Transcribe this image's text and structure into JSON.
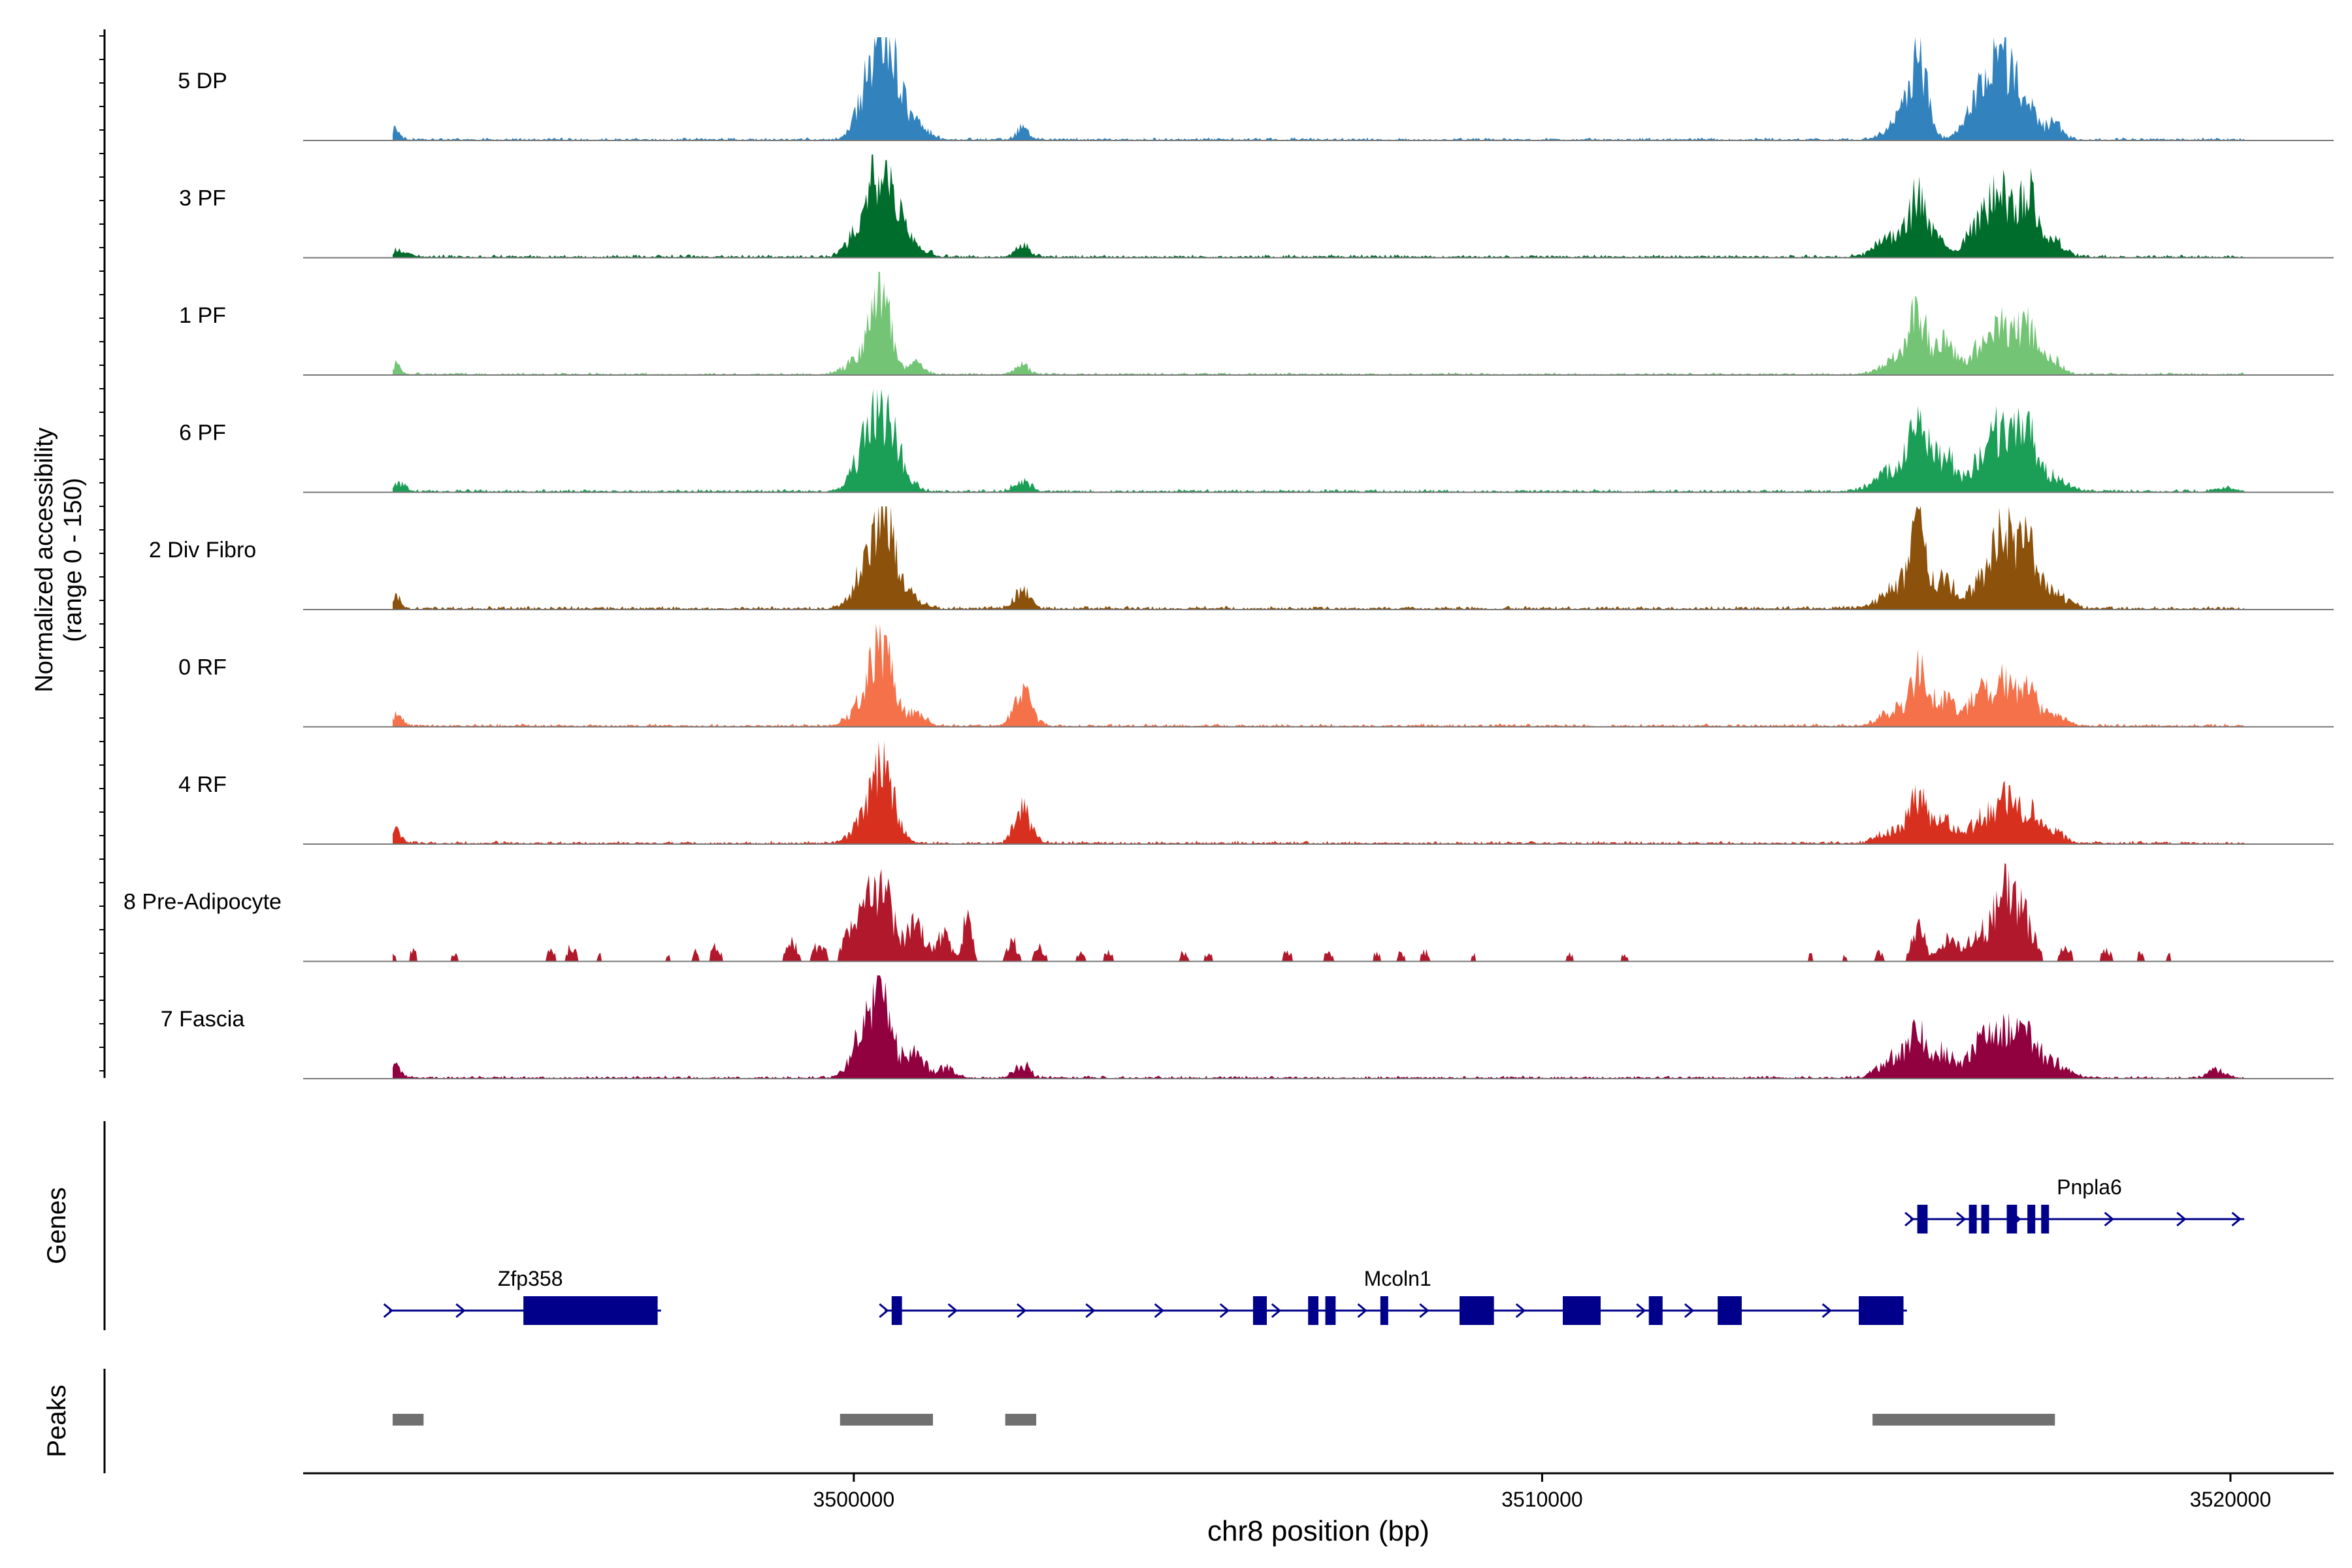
{
  "chart_data": {
    "type": "area",
    "title": "",
    "ylabel": "Normalized accessibility",
    "ylabel_range": "(range 0 - 150)",
    "ylim": [
      0,
      150
    ],
    "xlabel": "chr8 position (bp)",
    "xlim": [
      3492000,
      3521500
    ],
    "x_ticks": [
      3500000,
      3510000,
      3520000
    ],
    "x_tick_labels": [
      "3500000",
      "3510000",
      "3520000"
    ],
    "region_start": 3493300,
    "region_end": 3520200,
    "tracks": [
      {
        "name": "5 DP",
        "color": "#3182bd",
        "bg": 1.6,
        "peaks": [
          [
            3493300,
            14,
            80
          ],
          [
            3500330,
            110,
            200
          ],
          [
            3500480,
            60,
            140
          ],
          [
            3500750,
            34,
            150
          ],
          [
            3501050,
            10,
            120
          ],
          [
            3502450,
            16,
            90
          ],
          [
            3515470,
            104,
            120
          ],
          [
            3515250,
            30,
            220
          ],
          [
            3516250,
            32,
            160
          ],
          [
            3516700,
            88,
            220
          ],
          [
            3516550,
            50,
            150
          ],
          [
            3517000,
            40,
            160
          ],
          [
            3517450,
            22,
            120
          ]
        ]
      },
      {
        "name": "3 PF",
        "color": "#006d2c",
        "bg": 1.8,
        "peaks": [
          [
            3493400,
            10,
            100
          ],
          [
            3500430,
            110,
            210
          ],
          [
            3500150,
            40,
            180
          ],
          [
            3500850,
            20,
            160
          ],
          [
            3502450,
            18,
            100
          ],
          [
            3515470,
            80,
            120
          ],
          [
            3515100,
            30,
            220
          ],
          [
            3515750,
            26,
            150
          ],
          [
            3516250,
            30,
            140
          ],
          [
            3516700,
            84,
            160
          ],
          [
            3517050,
            86,
            130
          ],
          [
            3516450,
            32,
            120
          ],
          [
            3517400,
            22,
            180
          ]
        ]
      },
      {
        "name": "1 PF",
        "color": "#74c476",
        "bg": 1.4,
        "peaks": [
          [
            3493350,
            14,
            70
          ],
          [
            3500400,
            106,
            150
          ],
          [
            3500100,
            22,
            200
          ],
          [
            3500900,
            16,
            110
          ],
          [
            3502450,
            12,
            110
          ],
          [
            3515470,
            84,
            120
          ],
          [
            3515150,
            22,
            220
          ],
          [
            3515850,
            44,
            150
          ],
          [
            3516350,
            36,
            140
          ],
          [
            3516700,
            68,
            150
          ],
          [
            3517050,
            64,
            130
          ],
          [
            3517400,
            22,
            140
          ]
        ]
      },
      {
        "name": "6 PF",
        "color": "#1b9e55",
        "bg": 1.8,
        "peaks": [
          [
            3493400,
            10,
            100
          ],
          [
            3500430,
            104,
            220
          ],
          [
            3500150,
            30,
            180
          ],
          [
            3502450,
            14,
            120
          ],
          [
            3515470,
            92,
            130
          ],
          [
            3515100,
            30,
            240
          ],
          [
            3515850,
            50,
            150
          ],
          [
            3516350,
            34,
            150
          ],
          [
            3516700,
            90,
            180
          ],
          [
            3517050,
            76,
            130
          ],
          [
            3517400,
            22,
            200
          ],
          [
            3519900,
            6,
            120
          ]
        ]
      },
      {
        "name": "2 Div Fibro",
        "color": "#8c510a",
        "bg": 2.0,
        "peaks": [
          [
            3493350,
            16,
            80
          ],
          [
            3500430,
            130,
            170
          ],
          [
            3500150,
            40,
            170
          ],
          [
            3500850,
            14,
            160
          ],
          [
            3502450,
            26,
            110
          ],
          [
            3515470,
            100,
            120
          ],
          [
            3515150,
            30,
            220
          ],
          [
            3515850,
            44,
            150
          ],
          [
            3516350,
            40,
            140
          ],
          [
            3516700,
            112,
            150
          ],
          [
            3517050,
            80,
            130
          ],
          [
            3517400,
            24,
            200
          ]
        ]
      },
      {
        "name": "0 RF",
        "color": "#f4714a",
        "bg": 1.8,
        "peaks": [
          [
            3493350,
            16,
            80
          ],
          [
            3500430,
            112,
            150
          ],
          [
            3500150,
            36,
            180
          ],
          [
            3500900,
            18,
            140
          ],
          [
            3502450,
            46,
            130
          ],
          [
            3515470,
            72,
            120
          ],
          [
            3515150,
            22,
            220
          ],
          [
            3515850,
            40,
            150
          ],
          [
            3516350,
            46,
            140
          ],
          [
            3516700,
            60,
            150
          ],
          [
            3517050,
            48,
            130
          ],
          [
            3517400,
            18,
            160
          ]
        ]
      },
      {
        "name": "4 RF",
        "color": "#d7301f",
        "bg": 1.8,
        "peaks": [
          [
            3493350,
            18,
            70
          ],
          [
            3500430,
            108,
            160
          ],
          [
            3500150,
            26,
            180
          ],
          [
            3502450,
            48,
            120
          ],
          [
            3515470,
            66,
            120
          ],
          [
            3515150,
            20,
            220
          ],
          [
            3515850,
            32,
            150
          ],
          [
            3516350,
            30,
            140
          ],
          [
            3516700,
            60,
            160
          ],
          [
            3517050,
            44,
            130
          ],
          [
            3517400,
            18,
            160
          ]
        ]
      },
      {
        "name": "8 Pre-Adipocyte",
        "color": "#b2182b",
        "bg": 0.0,
        "peaks": [
          [
            3493300,
            12,
            60
          ],
          [
            3493600,
            16,
            50
          ],
          [
            3494200,
            12,
            50
          ],
          [
            3495600,
            16,
            60
          ],
          [
            3495900,
            22,
            60
          ],
          [
            3496300,
            10,
            50
          ],
          [
            3497300,
            10,
            50
          ],
          [
            3497700,
            14,
            50
          ],
          [
            3498000,
            20,
            70
          ],
          [
            3499100,
            26,
            80
          ],
          [
            3499500,
            24,
            90
          ],
          [
            3499900,
            28,
            80
          ],
          [
            3500400,
            100,
            160
          ],
          [
            3500150,
            50,
            140
          ],
          [
            3500900,
            52,
            140
          ],
          [
            3501300,
            36,
            100
          ],
          [
            3501650,
            60,
            70
          ],
          [
            3502300,
            28,
            80
          ],
          [
            3502700,
            20,
            80
          ],
          [
            3503300,
            14,
            60
          ],
          [
            3503700,
            14,
            60
          ],
          [
            3504800,
            14,
            60
          ],
          [
            3505150,
            12,
            60
          ],
          [
            3506300,
            14,
            60
          ],
          [
            3506900,
            14,
            60
          ],
          [
            3507600,
            12,
            60
          ],
          [
            3507950,
            12,
            60
          ],
          [
            3508300,
            14,
            60
          ],
          [
            3509000,
            10,
            50
          ],
          [
            3510400,
            10,
            60
          ],
          [
            3511200,
            10,
            60
          ],
          [
            3513900,
            10,
            50
          ],
          [
            3514400,
            10,
            50
          ],
          [
            3514900,
            14,
            60
          ],
          [
            3515470,
            44,
            100
          ],
          [
            3515900,
            30,
            120
          ],
          [
            3516300,
            36,
            140
          ],
          [
            3516700,
            92,
            160
          ],
          [
            3517000,
            56,
            140
          ],
          [
            3517600,
            20,
            80
          ],
          [
            3518200,
            16,
            80
          ],
          [
            3518700,
            12,
            60
          ],
          [
            3519100,
            10,
            50
          ]
        ]
      },
      {
        "name": "7 Fascia",
        "color": "#91003f",
        "bg": 1.6,
        "peaks": [
          [
            3493350,
            16,
            80
          ],
          [
            3500400,
            114,
            150
          ],
          [
            3500100,
            50,
            150
          ],
          [
            3500880,
            34,
            150
          ],
          [
            3501350,
            14,
            120
          ],
          [
            3502450,
            18,
            110
          ],
          [
            3515470,
            58,
            120
          ],
          [
            3515150,
            30,
            220
          ],
          [
            3515850,
            38,
            150
          ],
          [
            3516350,
            46,
            150
          ],
          [
            3516700,
            70,
            160
          ],
          [
            3517050,
            58,
            130
          ],
          [
            3517400,
            24,
            200
          ],
          [
            3519800,
            10,
            140
          ]
        ]
      }
    ],
    "genes": [
      {
        "name": "Zfp358",
        "row": 2,
        "start": 3493250,
        "end": 3497200,
        "exons": [
          [
            3495200,
            3497150
          ]
        ],
        "arrows": [
          3493250,
          3494300
        ]
      },
      {
        "name": "Mcoln1",
        "row": 2,
        "start": 3500450,
        "end": 3515300,
        "exons": [
          [
            3500550,
            3500700
          ],
          [
            3505800,
            3506000
          ],
          [
            3506600,
            3506750
          ],
          [
            3506850,
            3507000
          ],
          [
            3507650,
            3507750
          ],
          [
            3508800,
            3509300
          ],
          [
            3510300,
            3510850
          ],
          [
            3511550,
            3511750
          ],
          [
            3512550,
            3512900
          ],
          [
            3514600,
            3515250
          ]
        ],
        "arrows": [
          3500450,
          3501450,
          3502450,
          3503450,
          3504450,
          3505400,
          3506150,
          3507400,
          3508300,
          3509700,
          3511450,
          3512150,
          3514150
        ]
      },
      {
        "name": "Pnpla6",
        "row": 1,
        "start": 3515350,
        "end": 3520200,
        "exons": [
          [
            3515450,
            3515600
          ],
          [
            3516200,
            3516250
          ],
          [
            3516380,
            3516430
          ],
          [
            3516750,
            3516900
          ],
          [
            3517050,
            3517100
          ],
          [
            3517250,
            3517350
          ]
        ],
        "arrows": [
          3515350,
          3516100,
          3516900,
          3518250,
          3519300,
          3520100
        ]
      }
    ],
    "gene_color": "#00008b",
    "peak_regions": [
      [
        3493300,
        3493750
      ],
      [
        3499800,
        3501150
      ],
      [
        3502200,
        3502650
      ],
      [
        3514800,
        3517450
      ]
    ],
    "peak_color": "#707070",
    "panel_labels": {
      "genes": "Genes",
      "peaks": "Peaks"
    }
  }
}
